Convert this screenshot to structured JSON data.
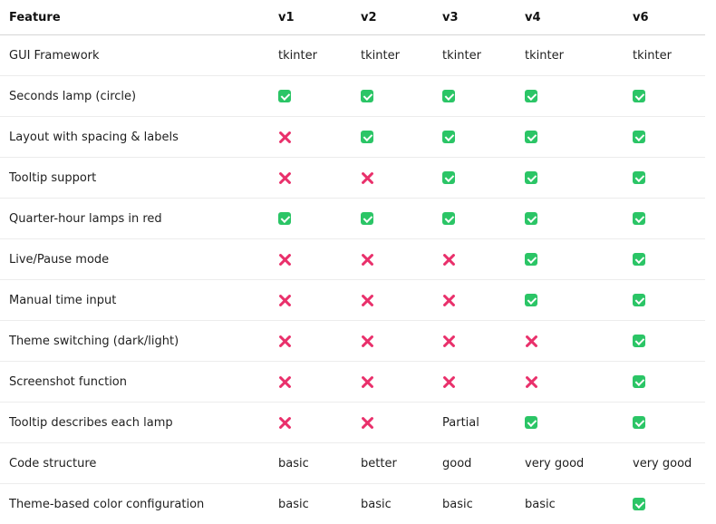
{
  "table": {
    "headers": [
      "Feature",
      "v1",
      "v2",
      "v3",
      "v4",
      "v6"
    ],
    "rows": [
      {
        "feature": "GUI Framework",
        "cells": [
          {
            "type": "text",
            "text": "tkinter"
          },
          {
            "type": "text",
            "text": "tkinter"
          },
          {
            "type": "text",
            "text": "tkinter"
          },
          {
            "type": "text",
            "text": "tkinter"
          },
          {
            "type": "text",
            "text": "tkinter"
          }
        ]
      },
      {
        "feature": "Seconds lamp (circle)",
        "cells": [
          {
            "type": "check"
          },
          {
            "type": "check"
          },
          {
            "type": "check"
          },
          {
            "type": "check"
          },
          {
            "type": "check"
          }
        ]
      },
      {
        "feature": "Layout with spacing & labels",
        "cells": [
          {
            "type": "cross"
          },
          {
            "type": "check"
          },
          {
            "type": "check"
          },
          {
            "type": "check"
          },
          {
            "type": "check"
          }
        ]
      },
      {
        "feature": "Tooltip support",
        "cells": [
          {
            "type": "cross"
          },
          {
            "type": "cross"
          },
          {
            "type": "check"
          },
          {
            "type": "check"
          },
          {
            "type": "check"
          }
        ]
      },
      {
        "feature": "Quarter-hour lamps in red",
        "cells": [
          {
            "type": "check"
          },
          {
            "type": "check"
          },
          {
            "type": "check"
          },
          {
            "type": "check"
          },
          {
            "type": "check"
          }
        ]
      },
      {
        "feature": "Live/Pause mode",
        "cells": [
          {
            "type": "cross"
          },
          {
            "type": "cross"
          },
          {
            "type": "cross"
          },
          {
            "type": "check"
          },
          {
            "type": "check"
          }
        ]
      },
      {
        "feature": "Manual time input",
        "cells": [
          {
            "type": "cross"
          },
          {
            "type": "cross"
          },
          {
            "type": "cross"
          },
          {
            "type": "check"
          },
          {
            "type": "check"
          }
        ]
      },
      {
        "feature": "Theme switching (dark/light)",
        "cells": [
          {
            "type": "cross"
          },
          {
            "type": "cross"
          },
          {
            "type": "cross"
          },
          {
            "type": "cross"
          },
          {
            "type": "check"
          }
        ]
      },
      {
        "feature": "Screenshot function",
        "cells": [
          {
            "type": "cross"
          },
          {
            "type": "cross"
          },
          {
            "type": "cross"
          },
          {
            "type": "cross"
          },
          {
            "type": "check"
          }
        ]
      },
      {
        "feature": "Tooltip describes each lamp",
        "cells": [
          {
            "type": "cross"
          },
          {
            "type": "cross"
          },
          {
            "type": "text",
            "text": "Partial"
          },
          {
            "type": "check"
          },
          {
            "type": "check"
          }
        ]
      },
      {
        "feature": "Code structure",
        "cells": [
          {
            "type": "text",
            "text": "basic"
          },
          {
            "type": "text",
            "text": "better"
          },
          {
            "type": "text",
            "text": "good"
          },
          {
            "type": "text",
            "text": "very good"
          },
          {
            "type": "text",
            "text": "very good"
          }
        ]
      },
      {
        "feature": "Theme-based color configuration",
        "cells": [
          {
            "type": "text",
            "text": "basic"
          },
          {
            "type": "text",
            "text": "basic"
          },
          {
            "type": "text",
            "text": "basic"
          },
          {
            "type": "text",
            "text": "basic"
          },
          {
            "type": "check"
          }
        ]
      }
    ]
  },
  "icons": {
    "check": "check-mark-icon",
    "cross": "cross-mark-icon"
  },
  "colors": {
    "check": "#2bc566",
    "cross": "#e9306b",
    "text": "#1f1f1f"
  }
}
